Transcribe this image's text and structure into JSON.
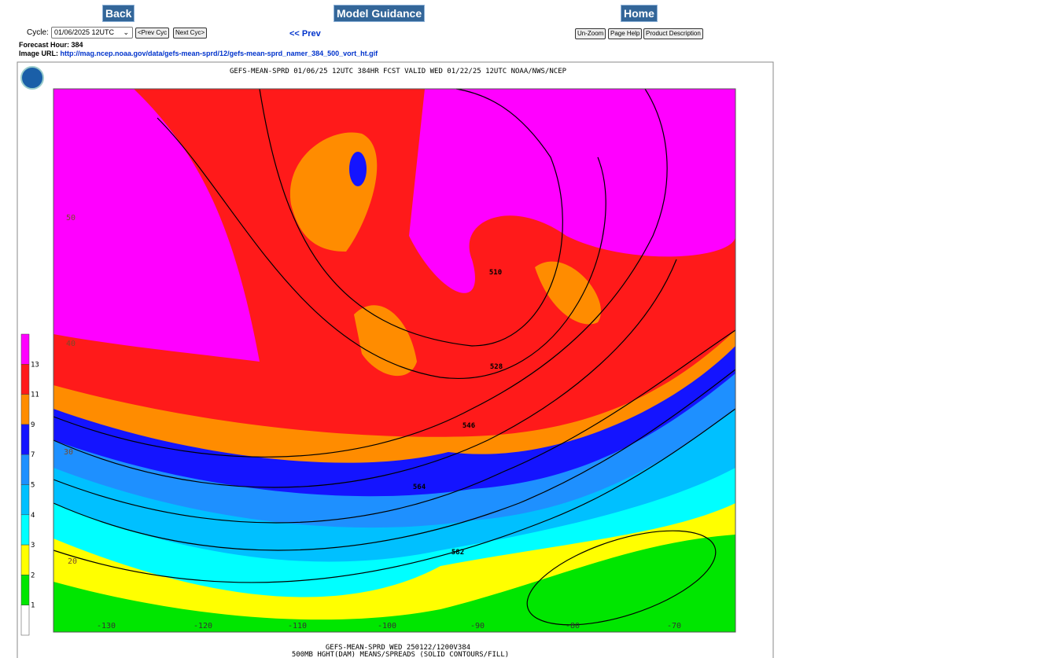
{
  "nav": {
    "back": "Back",
    "model_guidance": "Model Guidance",
    "home": "Home"
  },
  "controls": {
    "cycle_label": "Cycle:",
    "cycle_value": "01/06/2025 12UTC",
    "prev_cycle": "<Prev Cyc",
    "next_cycle": "Next Cyc>",
    "prev": "<< Prev",
    "unzoom": "Un-Zoom",
    "page_help": "Page Help",
    "product_description": "Product Description"
  },
  "info": {
    "forecast_hour": "Forecast Hour: 384",
    "image_url_label": "Image URL:",
    "image_url": "http://mag.ncep.noaa.gov/data/gefs-mean-sprd/12/gefs-mean-sprd_namer_384_500_vort_ht.gif"
  },
  "map": {
    "header": "GEFS-MEAN-SPRD 01/06/25 12UTC 384HR FCST VALID WED 01/22/25 12UTC NOAA/NWS/NCEP",
    "footer_lines": [
      "GEFS-MEAN-SPRD WED 250122/1200V384",
      "500MB HGHT(DAM) MEANS/SPREADS (SOLID CONTOURS/FILL)"
    ],
    "contour_labels": [
      "510",
      "528",
      "546",
      "564",
      "582"
    ],
    "latitude_labels": [
      "50",
      "40",
      "30",
      "20"
    ],
    "longitude_labels": [
      "-130",
      "-120",
      "-110",
      "-100",
      "-90",
      "-80",
      "-70"
    ],
    "colorbar": {
      "labels": [
        "13",
        "11",
        "9",
        "7",
        "5",
        "4",
        "3",
        "2",
        "1"
      ],
      "colors": [
        "#ff00ff",
        "#ff1a1a",
        "#ff8c00",
        "#1414ff",
        "#1e90ff",
        "#00c0ff",
        "#00ffff",
        "#ffff00",
        "#00e600",
        "#ffffff"
      ]
    }
  }
}
